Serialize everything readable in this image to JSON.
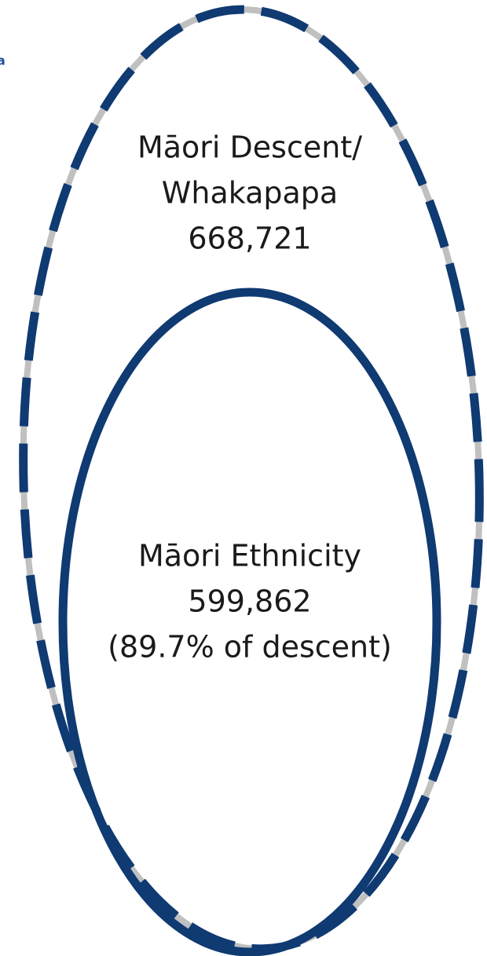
{
  "fragment": "a",
  "outer": {
    "lines": [
      "Māori Descent/",
      "Whakapapa",
      "668,721"
    ]
  },
  "inner": {
    "lines": [
      "Māori Ethnicity",
      "599,862",
      "(89.7% of descent)"
    ]
  }
}
